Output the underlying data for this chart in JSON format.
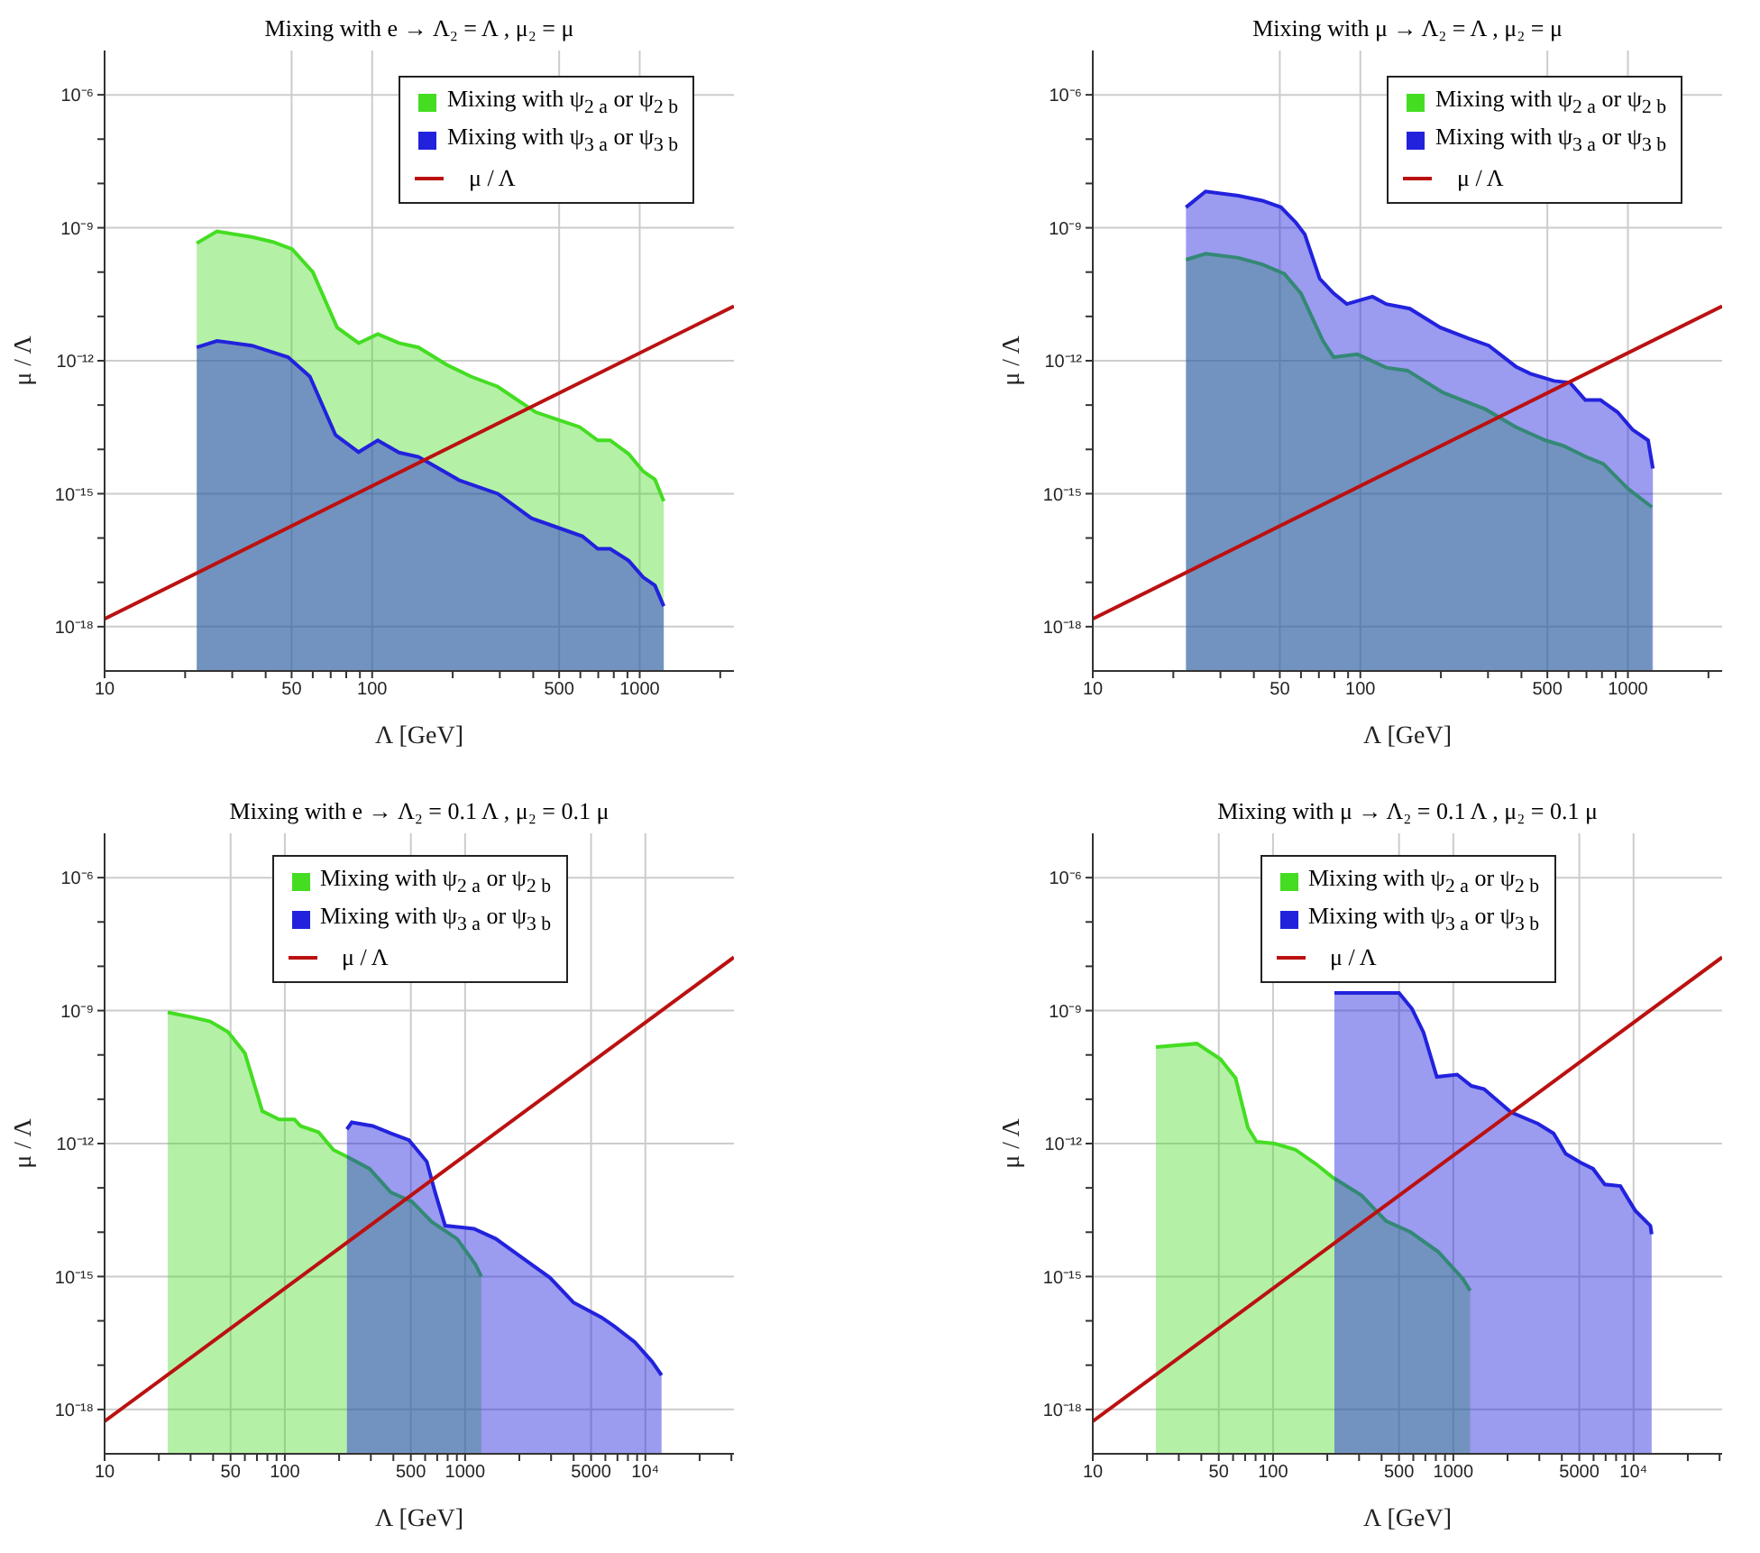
{
  "chart_data": [
    {
      "type": "area",
      "title": "Mixing with e → Λ₂ = Λ , μ₂ = μ",
      "xlabel": "Λ [GeV]",
      "ylabel": "μ / Λ",
      "log": "xy",
      "grid": true,
      "legend": "top right",
      "xlim": [
        10,
        2250
      ],
      "ylim": [
        1e-19,
        1e-05
      ],
      "xticks": [
        10,
        {
          "value": 20,
          "label": null
        },
        {
          "value": 30,
          "label": null
        },
        {
          "value": 40,
          "label": null
        },
        50,
        {
          "value": 60,
          "label": null
        },
        {
          "value": 70,
          "label": null
        },
        {
          "value": 80,
          "label": null
        },
        {
          "value": 90,
          "label": null
        },
        100,
        {
          "value": 200,
          "label": null
        },
        {
          "value": 300,
          "label": null
        },
        {
          "value": 400,
          "label": null
        },
        500,
        {
          "value": 600,
          "label": null
        },
        {
          "value": 700,
          "label": null
        },
        {
          "value": 800,
          "label": null
        },
        {
          "value": 900,
          "label": null
        },
        1000,
        {
          "value": 2000,
          "label": null
        }
      ],
      "yticks": [
        {
          "value": 1e-18,
          "label": "10⁻¹⁸"
        },
        {
          "value": 1e-17,
          "label": null
        },
        {
          "value": 1e-16,
          "label": null
        },
        {
          "value": 1e-15,
          "label": "10⁻¹⁵"
        },
        {
          "value": 1e-14,
          "label": null
        },
        {
          "value": 1e-13,
          "label": null
        },
        {
          "value": 1e-12,
          "label": "10⁻¹²"
        },
        {
          "value": 1e-11,
          "label": null
        },
        {
          "value": 1e-10,
          "label": null
        },
        {
          "value": 1e-09,
          "label": "10⁻⁹"
        },
        {
          "value": 1e-08,
          "label": null
        },
        {
          "value": 1e-07,
          "label": null
        },
        {
          "value": 1e-06,
          "label": "10⁻⁶"
        }
      ],
      "series": [
        {
          "name": "Mixing with ψ$_{2 a}$ or ψ$_{2 b}$",
          "color": "#44dd22",
          "x": [
            22.1,
            26.3,
            35.5,
            42.5,
            50.2,
            60,
            74,
            89,
            105,
            126,
            149,
            190,
            234,
            295,
            337,
            409,
            497,
            596,
            697,
            775,
            909,
            1030,
            1140,
            1230
          ],
          "values": [
            4.5e-10,
            8.3e-10,
            6.2e-10,
            4.8e-10,
            3.3e-10,
            1e-10,
            5.6e-12,
            2.5e-12,
            4e-12,
            2.5e-12,
            2e-12,
            8.1e-13,
            4.4e-13,
            2.6e-13,
            1.5e-13,
            6.9e-14,
            4.6e-14,
            3.2e-14,
            1.6e-14,
            1.6e-14,
            7.9e-15,
            3.2e-15,
            2.1e-15,
            6.8e-16
          ]
        },
        {
          "name": "Mixing with ψ$_{3 a}$ or ψ$_{3 b}$",
          "color": "#2222dd",
          "x": [
            22.1,
            26.3,
            35.5,
            48.5,
            58.5,
            73,
            89,
            105,
            126,
            149,
            212,
            295,
            394,
            497,
            610,
            697,
            775,
            909,
            1030,
            1140,
            1230
          ],
          "values": [
            2e-12,
            2.8e-12,
            2.2e-12,
            1.2e-12,
            4.4e-13,
            2.1e-14,
            8.7e-15,
            1.6e-14,
            8.5e-15,
            6.8e-15,
            2e-15,
            1e-15,
            2.8e-16,
            1.7e-16,
            1.1e-16,
            5.7e-17,
            5.7e-17,
            3.1e-17,
            1.3e-17,
            8.5e-18,
            2.9e-18
          ]
        },
        {
          "name": "μ / Λ",
          "type": "line",
          "color": "#bb1111",
          "x": [
            10,
            2250
          ],
          "values": [
            1.5e-18,
            1.7e-11
          ]
        }
      ]
    },
    {
      "type": "area",
      "title": "Mixing with μ → Λ₂ = Λ , μ₂ = μ",
      "xlabel": "Λ [GeV]",
      "ylabel": "μ / Λ",
      "log": "xy",
      "grid": true,
      "legend": "top right",
      "xlim": [
        10,
        2250
      ],
      "ylim": [
        1e-19,
        1e-05
      ],
      "xticks": [
        10,
        {
          "value": 20,
          "label": null
        },
        {
          "value": 30,
          "label": null
        },
        {
          "value": 40,
          "label": null
        },
        50,
        {
          "value": 60,
          "label": null
        },
        {
          "value": 70,
          "label": null
        },
        {
          "value": 80,
          "label": null
        },
        {
          "value": 90,
          "label": null
        },
        100,
        {
          "value": 200,
          "label": null
        },
        {
          "value": 300,
          "label": null
        },
        {
          "value": 400,
          "label": null
        },
        500,
        {
          "value": 600,
          "label": null
        },
        {
          "value": 700,
          "label": null
        },
        {
          "value": 800,
          "label": null
        },
        {
          "value": 900,
          "label": null
        },
        1000,
        {
          "value": 2000,
          "label": null
        }
      ],
      "yticks": [
        {
          "value": 1e-18,
          "label": "10⁻¹⁸"
        },
        {
          "value": 1e-17,
          "label": null
        },
        {
          "value": 1e-16,
          "label": null
        },
        {
          "value": 1e-15,
          "label": "10⁻¹⁵"
        },
        {
          "value": 1e-14,
          "label": null
        },
        {
          "value": 1e-13,
          "label": null
        },
        {
          "value": 1e-12,
          "label": "10⁻¹²"
        },
        {
          "value": 1e-11,
          "label": null
        },
        {
          "value": 1e-10,
          "label": null
        },
        {
          "value": 1e-09,
          "label": "10⁻⁹"
        },
        {
          "value": 1e-08,
          "label": null
        },
        {
          "value": 1e-07,
          "label": null
        },
        {
          "value": 1e-06,
          "label": "10⁻⁶"
        }
      ],
      "series": [
        {
          "name": "Mixing with ψ$_{2 a}$ or ψ$_{2 b}$",
          "color": "#44dd22",
          "x": [
            22.3,
            26.4,
            35,
            43,
            52,
            60,
            72.5,
            79.5,
            97.5,
            125,
            150,
            204,
            294,
            381,
            492,
            575,
            708,
            810,
            1000,
            1230
          ],
          "values": [
            1.9e-10,
            2.6e-10,
            2.1e-10,
            1.5e-10,
            9.1e-11,
            3.3e-11,
            2.8e-12,
            1.2e-12,
            1.4e-12,
            7e-13,
            6e-13,
            1.9e-13,
            8e-14,
            3.2e-14,
            1.6e-14,
            1.2e-14,
            6.5e-15,
            4.7e-15,
            1.3e-15,
            5e-16
          ]
        },
        {
          "name": "Mixing with ψ$_{3 a}$ or ψ$_{3 b}$",
          "color": "#2222dd",
          "x": [
            22.3,
            26.4,
            35,
            43,
            50.5,
            57.5,
            62,
            70.5,
            79.5,
            89,
            111,
            125,
            153,
            199,
            253,
            302,
            381,
            432,
            530,
            608,
            693,
            790,
            915,
            1040,
            1190,
            1240
          ],
          "values": [
            2.9e-09,
            6.6e-09,
            5.3e-09,
            4.1e-09,
            2.9e-09,
            1.3e-09,
            7.1e-10,
            7.1e-11,
            3.3e-11,
            1.9e-11,
            2.8e-11,
            1.9e-11,
            1.5e-11,
            5.6e-12,
            3.2e-12,
            2.2e-12,
            7.4e-13,
            5.1e-13,
            3.5e-13,
            3.2e-13,
            1.3e-13,
            1.3e-13,
            6.9e-14,
            2.8e-14,
            1.6e-14,
            3.7e-15
          ]
        },
        {
          "name": "μ / Λ",
          "type": "line",
          "color": "#bb1111",
          "x": [
            10,
            2250
          ],
          "values": [
            1.5e-18,
            1.7e-11
          ]
        }
      ]
    },
    {
      "type": "area",
      "title": "Mixing with e → Λ₂ = 0.1 Λ , μ₂ = 0.1 μ",
      "xlabel": "Λ [GeV]",
      "ylabel": "μ / Λ",
      "log": "xy",
      "grid": true,
      "legend": "top",
      "xlim": [
        10,
        31000
      ],
      "ylim": [
        1e-19,
        1e-05
      ],
      "xticks": [
        10,
        {
          "value": 20,
          "label": null
        },
        {
          "value": 30,
          "label": null
        },
        {
          "value": 40,
          "label": null
        },
        50,
        {
          "value": 60,
          "label": null
        },
        {
          "value": 70,
          "label": null
        },
        {
          "value": 80,
          "label": null
        },
        {
          "value": 90,
          "label": null
        },
        100,
        {
          "value": 200,
          "label": null
        },
        {
          "value": 300,
          "label": null
        },
        {
          "value": 400,
          "label": null
        },
        500,
        {
          "value": 600,
          "label": null
        },
        {
          "value": 700,
          "label": null
        },
        {
          "value": 800,
          "label": null
        },
        {
          "value": 900,
          "label": null
        },
        1000,
        {
          "value": 2000,
          "label": null
        },
        {
          "value": 3000,
          "label": null
        },
        {
          "value": 4000,
          "label": null
        },
        5000,
        {
          "value": 6000,
          "label": null
        },
        {
          "value": 7000,
          "label": null
        },
        {
          "value": 8000,
          "label": null
        },
        {
          "value": 9000,
          "label": null
        },
        {
          "value": 10000,
          "label": "10⁴"
        },
        {
          "value": 20000,
          "label": null
        },
        {
          "value": 30000,
          "label": null
        }
      ],
      "yticks": [
        {
          "value": 1e-18,
          "label": "10⁻¹⁸"
        },
        {
          "value": 1e-17,
          "label": null
        },
        {
          "value": 1e-16,
          "label": null
        },
        {
          "value": 1e-15,
          "label": "10⁻¹⁵"
        },
        {
          "value": 1e-14,
          "label": null
        },
        {
          "value": 1e-13,
          "label": null
        },
        {
          "value": 1e-12,
          "label": "10⁻¹²"
        },
        {
          "value": 1e-11,
          "label": null
        },
        {
          "value": 1e-10,
          "label": null
        },
        {
          "value": 1e-09,
          "label": "10⁻⁹"
        },
        {
          "value": 1e-08,
          "label": null
        },
        {
          "value": 1e-07,
          "label": null
        },
        {
          "value": 1e-06,
          "label": "10⁻⁶"
        }
      ],
      "series": [
        {
          "name": "Mixing with ψ$_{2 a}$ or ψ$_{2 b}$",
          "color": "#44dd22",
          "x": [
            22.4,
            30.5,
            38.5,
            48.4,
            60,
            75,
            93,
            113,
            122,
            154,
            186,
            222,
            295,
            387,
            507,
            654,
            903,
            1140,
            1230
          ],
          "values": [
            9.1e-10,
            7.1e-10,
            5.7e-10,
            3.3e-10,
            1.1e-10,
            5.4e-12,
            3.5e-12,
            3.5e-12,
            2.5e-12,
            1.8e-12,
            7.2e-13,
            5e-13,
            2.7e-13,
            7.9e-14,
            4.9e-14,
            1.7e-14,
            7.1e-15,
            1.9e-15,
            1e-15
          ]
        },
        {
          "name": "Mixing with ψ$_{3 a}$ or ψ$_{3 b}$",
          "color": "#2222dd",
          "x": [
            221,
            235,
            307,
            387,
            488,
            613,
            682,
            775,
            1120,
            1480,
            2090,
            2950,
            3990,
            5700,
            6700,
            8740,
            10900,
            12300
          ],
          "values": [
            2.1e-12,
            3e-12,
            2.5e-12,
            1.7e-12,
            1.2e-12,
            3.9e-13,
            7.9e-14,
            1.4e-14,
            1.2e-14,
            7.1e-15,
            2.6e-15,
            9.5e-16,
            2.6e-16,
            1.2e-16,
            7.6e-17,
            3.3e-17,
            1.2e-17,
            5.9e-18
          ]
        },
        {
          "name": "μ / Λ",
          "type": "line",
          "color": "#bb1111",
          "x": [
            10,
            31000
          ],
          "values": [
            5.4e-19,
            1.6e-08
          ]
        }
      ]
    },
    {
      "type": "area",
      "title": "Mixing with μ → Λ₂ = 0.1 Λ , μ₂ = 0.1 μ",
      "xlabel": "Λ [GeV]",
      "ylabel": "μ / Λ",
      "log": "xy",
      "grid": true,
      "legend": "top",
      "xlim": [
        10,
        31000
      ],
      "ylim": [
        1e-19,
        1e-05
      ],
      "xticks": [
        10,
        {
          "value": 20,
          "label": null
        },
        {
          "value": 30,
          "label": null
        },
        {
          "value": 40,
          "label": null
        },
        50,
        {
          "value": 60,
          "label": null
        },
        {
          "value": 70,
          "label": null
        },
        {
          "value": 80,
          "label": null
        },
        {
          "value": 90,
          "label": null
        },
        100,
        {
          "value": 200,
          "label": null
        },
        {
          "value": 300,
          "label": null
        },
        {
          "value": 400,
          "label": null
        },
        500,
        {
          "value": 600,
          "label": null
        },
        {
          "value": 700,
          "label": null
        },
        {
          "value": 800,
          "label": null
        },
        {
          "value": 900,
          "label": null
        },
        1000,
        {
          "value": 2000,
          "label": null
        },
        {
          "value": 3000,
          "label": null
        },
        {
          "value": 4000,
          "label": null
        },
        5000,
        {
          "value": 6000,
          "label": null
        },
        {
          "value": 7000,
          "label": null
        },
        {
          "value": 8000,
          "label": null
        },
        {
          "value": 9000,
          "label": null
        },
        {
          "value": 10000,
          "label": "10⁴"
        },
        {
          "value": 20000,
          "label": null
        },
        {
          "value": 30000,
          "label": null
        }
      ],
      "yticks": [
        {
          "value": 1e-18,
          "label": "10⁻¹⁸"
        },
        {
          "value": 1e-17,
          "label": null
        },
        {
          "value": 1e-16,
          "label": null
        },
        {
          "value": 1e-15,
          "label": "10⁻¹⁵"
        },
        {
          "value": 1e-14,
          "label": null
        },
        {
          "value": 1e-13,
          "label": null
        },
        {
          "value": 1e-12,
          "label": "10⁻¹²"
        },
        {
          "value": 1e-11,
          "label": null
        },
        {
          "value": 1e-10,
          "label": null
        },
        {
          "value": 1e-09,
          "label": "10⁻⁹"
        },
        {
          "value": 1e-08,
          "label": null
        },
        {
          "value": 1e-07,
          "label": null
        },
        {
          "value": 1e-06,
          "label": "10⁻⁶"
        }
      ],
      "series": [
        {
          "name": "Mixing with ψ$_{2 a}$ or ψ$_{2 b}$",
          "color": "#44dd22",
          "x": [
            22.4,
            37.8,
            51,
            62,
            72.5,
            81,
            102,
            133,
            174,
            215,
            309,
            423,
            580,
            826,
            1130,
            1240
          ],
          "values": [
            1.5e-10,
            1.8e-10,
            8.1e-11,
            3e-11,
            2.3e-12,
            1.1e-12,
            1e-12,
            7.3e-13,
            3.4e-13,
            1.7e-13,
            6.8e-14,
            1.8e-14,
            1e-14,
            3.6e-15,
            8.9e-16,
            4.8e-16
          ]
        },
        {
          "name": "Mixing with ψ$_{3 a}$ or ψ$_{3 b}$",
          "color": "#2222dd",
          "x": [
            219,
            500,
            590,
            684,
            810,
            1050,
            1260,
            1480,
            2090,
            2950,
            3600,
            4200,
            5100,
            5960,
            6920,
            8450,
            10200,
            12400,
            12600
          ],
          "values": [
            2.5e-09,
            2.5e-09,
            1.1e-09,
            3.2e-10,
            3.2e-11,
            3.6e-11,
            2e-11,
            1.7e-11,
            5.1e-12,
            2.8e-12,
            1.7e-12,
            5.9e-13,
            3.7e-13,
            2.7e-13,
            1.2e-13,
            1.1e-13,
            3.1e-14,
            1.4e-14,
            9e-15
          ]
        },
        {
          "name": "μ / Λ",
          "type": "line",
          "color": "#bb1111",
          "x": [
            10,
            31000
          ],
          "values": [
            5.4e-19,
            1.6e-08
          ]
        }
      ]
    }
  ]
}
